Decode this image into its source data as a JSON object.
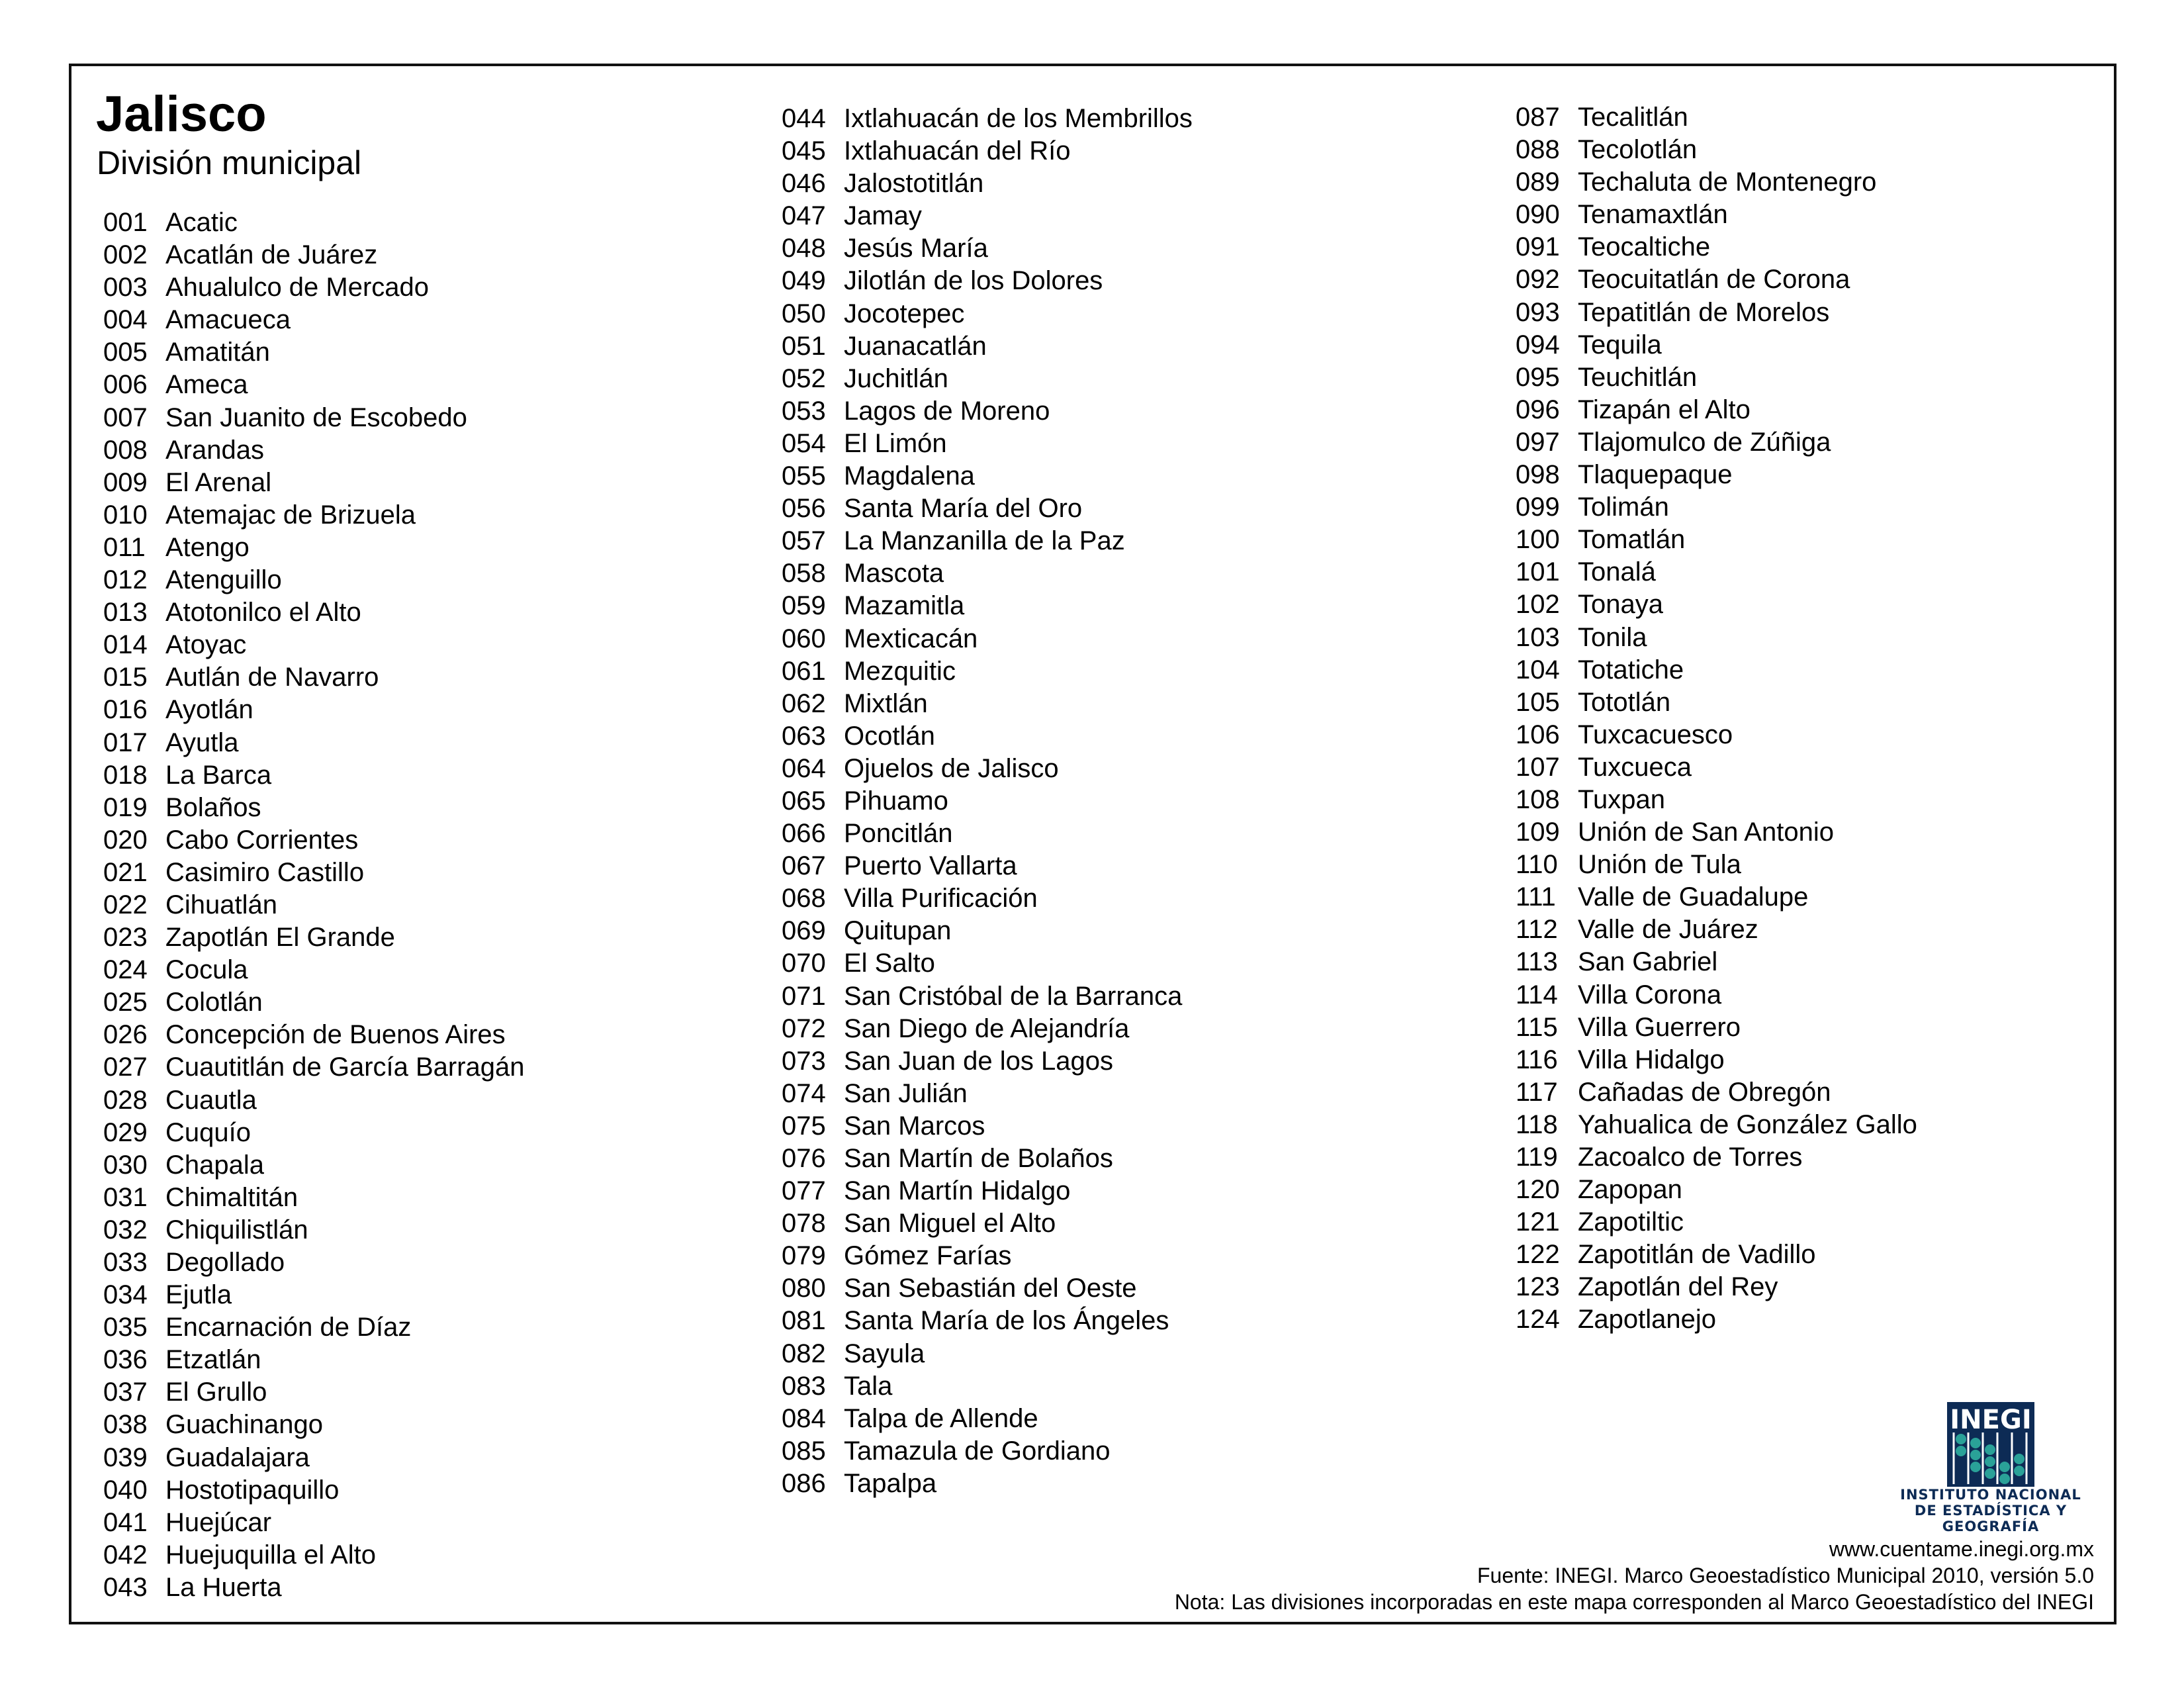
{
  "header": {
    "title": "Jalisco",
    "subtitle": "División municipal"
  },
  "colors": {
    "border": "#111111",
    "logo_blue": "#0d2b55",
    "logo_bead": "#2aa198"
  },
  "columns": [
    [
      [
        "001",
        "Acatic"
      ],
      [
        "002",
        "Acatlán de Juárez"
      ],
      [
        "003",
        "Ahualulco de Mercado"
      ],
      [
        "004",
        "Amacueca"
      ],
      [
        "005",
        "Amatitán"
      ],
      [
        "006",
        "Ameca"
      ],
      [
        "007",
        "San Juanito de Escobedo"
      ],
      [
        "008",
        "Arandas"
      ],
      [
        "009",
        "El Arenal"
      ],
      [
        "010",
        "Atemajac de Brizuela"
      ],
      [
        "011",
        "Atengo"
      ],
      [
        "012",
        "Atenguillo"
      ],
      [
        "013",
        "Atotonilco el Alto"
      ],
      [
        "014",
        "Atoyac"
      ],
      [
        "015",
        "Autlán de Navarro"
      ],
      [
        "016",
        "Ayotlán"
      ],
      [
        "017",
        "Ayutla"
      ],
      [
        "018",
        "La Barca"
      ],
      [
        "019",
        "Bolaños"
      ],
      [
        "020",
        "Cabo Corrientes"
      ],
      [
        "021",
        "Casimiro Castillo"
      ],
      [
        "022",
        "Cihuatlán"
      ],
      [
        "023",
        "Zapotlán El Grande"
      ],
      [
        "024",
        "Cocula"
      ],
      [
        "025",
        "Colotlán"
      ],
      [
        "026",
        "Concepción de Buenos Aires"
      ],
      [
        "027",
        "Cuautitlán de García Barragán"
      ],
      [
        "028",
        "Cuautla"
      ],
      [
        "029",
        "Cuquío"
      ],
      [
        "030",
        "Chapala"
      ],
      [
        "031",
        "Chimaltitán"
      ],
      [
        "032",
        "Chiquilistlán"
      ],
      [
        "033",
        "Degollado"
      ],
      [
        "034",
        "Ejutla"
      ],
      [
        "035",
        "Encarnación de Díaz"
      ],
      [
        "036",
        "Etzatlán"
      ],
      [
        "037",
        "El Grullo"
      ],
      [
        "038",
        "Guachinango"
      ],
      [
        "039",
        "Guadalajara"
      ],
      [
        "040",
        "Hostotipaquillo"
      ],
      [
        "041",
        "Huejúcar"
      ],
      [
        "042",
        "Huejuquilla el Alto"
      ],
      [
        "043",
        "La Huerta"
      ]
    ],
    [
      [
        "044",
        "Ixtlahuacán de los Membrillos"
      ],
      [
        "045",
        "Ixtlahuacán del Río"
      ],
      [
        "046",
        "Jalostotitlán"
      ],
      [
        "047",
        "Jamay"
      ],
      [
        "048",
        "Jesús María"
      ],
      [
        "049",
        "Jilotlán de los Dolores"
      ],
      [
        "050",
        "Jocotepec"
      ],
      [
        "051",
        "Juanacatlán"
      ],
      [
        "052",
        "Juchitlán"
      ],
      [
        "053",
        "Lagos de Moreno"
      ],
      [
        "054",
        "El Limón"
      ],
      [
        "055",
        "Magdalena"
      ],
      [
        "056",
        "Santa María del Oro"
      ],
      [
        "057",
        "La Manzanilla de la Paz"
      ],
      [
        "058",
        "Mascota"
      ],
      [
        "059",
        "Mazamitla"
      ],
      [
        "060",
        "Mexticacán"
      ],
      [
        "061",
        "Mezquitic"
      ],
      [
        "062",
        "Mixtlán"
      ],
      [
        "063",
        "Ocotlán"
      ],
      [
        "064",
        "Ojuelos de Jalisco"
      ],
      [
        "065",
        "Pihuamo"
      ],
      [
        "066",
        "Poncitlán"
      ],
      [
        "067",
        "Puerto Vallarta"
      ],
      [
        "068",
        "Villa Purificación"
      ],
      [
        "069",
        "Quitupan"
      ],
      [
        "070",
        "El Salto"
      ],
      [
        "071",
        "San Cristóbal de la Barranca"
      ],
      [
        "072",
        "San Diego de Alejandría"
      ],
      [
        "073",
        "San Juan de los Lagos"
      ],
      [
        "074",
        "San Julián"
      ],
      [
        "075",
        "San Marcos"
      ],
      [
        "076",
        "San Martín de Bolaños"
      ],
      [
        "077",
        "San Martín Hidalgo"
      ],
      [
        "078",
        "San Miguel el Alto"
      ],
      [
        "079",
        "Gómez Farías"
      ],
      [
        "080",
        "San Sebastián del Oeste"
      ],
      [
        "081",
        "Santa María de los Ángeles"
      ],
      [
        "082",
        "Sayula"
      ],
      [
        "083",
        "Tala"
      ],
      [
        "084",
        "Talpa de Allende"
      ],
      [
        "085",
        "Tamazula de Gordiano"
      ],
      [
        "086",
        "Tapalpa"
      ]
    ],
    [
      [
        "087",
        "Tecalitlán"
      ],
      [
        "088",
        "Tecolotlán"
      ],
      [
        "089",
        "Techaluta de Montenegro"
      ],
      [
        "090",
        "Tenamaxtlán"
      ],
      [
        "091",
        "Teocaltiche"
      ],
      [
        "092",
        "Teocuitatlán de Corona"
      ],
      [
        "093",
        "Tepatitlán de Morelos"
      ],
      [
        "094",
        "Tequila"
      ],
      [
        "095",
        "Teuchitlán"
      ],
      [
        "096",
        "Tizapán el Alto"
      ],
      [
        "097",
        "Tlajomulco de Zúñiga"
      ],
      [
        "098",
        "Tlaquepaque"
      ],
      [
        "099",
        "Tolimán"
      ],
      [
        "100",
        "Tomatlán"
      ],
      [
        "101",
        "Tonalá"
      ],
      [
        "102",
        "Tonaya"
      ],
      [
        "103",
        "Tonila"
      ],
      [
        "104",
        "Totatiche"
      ],
      [
        "105",
        "Tototlán"
      ],
      [
        "106",
        "Tuxcacuesco"
      ],
      [
        "107",
        "Tuxcueca"
      ],
      [
        "108",
        "Tuxpan"
      ],
      [
        "109",
        "Unión de San Antonio"
      ],
      [
        "110",
        "Unión de Tula"
      ],
      [
        "111",
        "Valle de Guadalupe"
      ],
      [
        "112",
        "Valle de Juárez"
      ],
      [
        "113",
        "San Gabriel"
      ],
      [
        "114",
        "Villa Corona"
      ],
      [
        "115",
        "Villa Guerrero"
      ],
      [
        "116",
        "Villa Hidalgo"
      ],
      [
        "117",
        "Cañadas de Obregón"
      ],
      [
        "118",
        "Yahualica de González Gallo"
      ],
      [
        "119",
        "Zacoalco de Torres"
      ],
      [
        "120",
        "Zapopan"
      ],
      [
        "121",
        "Zapotiltic"
      ],
      [
        "122",
        "Zapotitlán de Vadillo"
      ],
      [
        "123",
        "Zapotlán del Rey"
      ],
      [
        "124",
        "Zapotlanejo"
      ]
    ]
  ],
  "logo": {
    "wordmark": "INEGI",
    "line1": "INSTITUTO NACIONAL",
    "line2": "DE ESTADÍSTICA Y GEOGRAFÍA"
  },
  "footer": {
    "url": "www.cuentame.inegi.org.mx",
    "source": "Fuente: INEGI. Marco Geoestadístico Municipal 2010, versión 5.0",
    "note": "Nota: Las divisiones incorporadas en este mapa corresponden al Marco Geoestadístico del INEGI"
  }
}
